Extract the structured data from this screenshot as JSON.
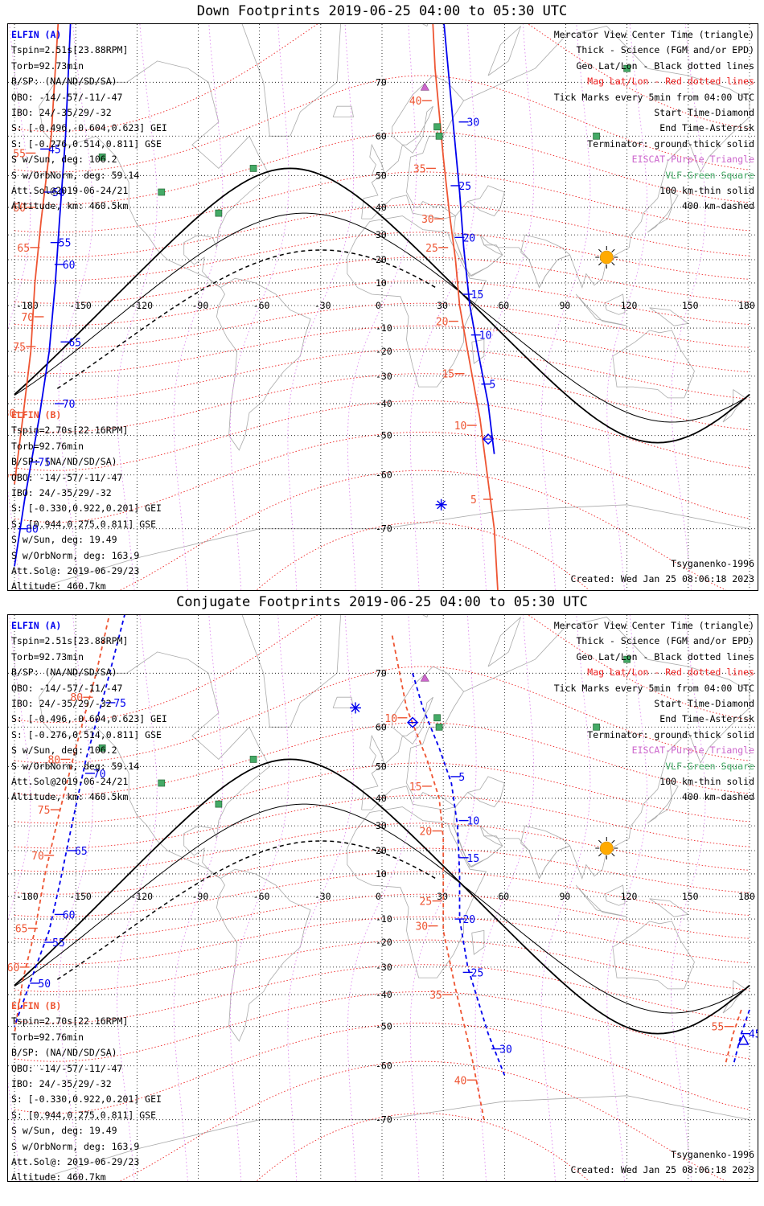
{
  "panels": [
    {
      "title": "Down Footprints 2019-06-25 04:00 to 05:30 UTC",
      "sat_a": {
        "name": "ELFIN (A)",
        "lines": [
          "Tspin=2.51s[23.88RPM]",
          "Torb=92.73min",
          "B/SP: (NA/ND/SD/SA)",
          "OBO: -14/-57/-11/-47",
          "IBO: 24/-35/29/-32",
          "S: [-0.496,-0.604,0.623] GEI",
          "S: [-0.276,0.514,0.811] GSE",
          "S w/Sun, deg: 106.2",
          "S w/OrbNorm, deg: 59.14",
          "Att.Sol@2019-06-24/21",
          "Altitude, km: 460.5km"
        ]
      },
      "sat_b": {
        "name": "ELFIN (B)",
        "lines": [
          "Tspin=2.70s[22.16RPM]",
          "Torb=92.76min",
          "B/SP: (NA/ND/SD/SA)",
          "OBO: -14/-57/-11/-47",
          "IBO: 24/-35/29/-32",
          "S: [-0.330,0.922,0.201] GEI",
          "S: [0.944,0.275,0.811] GSE",
          "S w/Sun, deg: 19.49",
          "S w/OrbNorm, deg: 163.9",
          "Att.Sol@: 2019-06-29/23",
          "Altitude: 460.7km"
        ]
      },
      "model": "Tsyganenko-1996",
      "created": "Created: Wed Jan 25 08:06:18 2023",
      "blue_ticks": [
        {
          "label": "30",
          "lon": 40,
          "lat": 63
        },
        {
          "label": "25",
          "lon": 36,
          "lat": 47
        },
        {
          "label": "20",
          "lon": 38,
          "lat": 29
        },
        {
          "label": "15",
          "lon": 42,
          "lat": 5
        },
        {
          "label": "10",
          "lon": 46,
          "lat": -13
        },
        {
          "label": "5",
          "lon": 51,
          "lat": -33
        },
        {
          "label": "45",
          "lon": -165,
          "lat": 57
        },
        {
          "label": "50",
          "lon": -163,
          "lat": 45
        },
        {
          "label": "55",
          "lon": -160,
          "lat": 27
        },
        {
          "label": "60",
          "lon": -158,
          "lat": 18
        },
        {
          "label": "65",
          "lon": -155,
          "lat": -16
        },
        {
          "label": "70",
          "lon": -158,
          "lat": -40
        },
        {
          "label": "75",
          "lon": -170,
          "lat": -57
        },
        {
          "label": "80",
          "lon": -176,
          "lat": -70
        }
      ],
      "red_ticks": [
        {
          "label": "40",
          "lon": 22,
          "lat": 67
        },
        {
          "label": "35",
          "lon": 24,
          "lat": 52
        },
        {
          "label": "30",
          "lon": 28,
          "lat": 36
        },
        {
          "label": "25",
          "lon": 30,
          "lat": 25
        },
        {
          "label": "20",
          "lon": 35,
          "lat": -7
        },
        {
          "label": "15",
          "lon": 38,
          "lat": -29
        },
        {
          "label": "10",
          "lon": 44,
          "lat": -47
        },
        {
          "label": "5",
          "lon": 52,
          "lat": -65
        },
        {
          "label": "50",
          "lon": -165,
          "lat": 80
        },
        {
          "label": "55",
          "lon": -172,
          "lat": 56
        },
        {
          "label": "60",
          "lon": -172,
          "lat": 40
        },
        {
          "label": "65",
          "lon": -170,
          "lat": 25
        },
        {
          "label": "70",
          "lon": -168,
          "lat": -5
        },
        {
          "label": "75",
          "lon": -172,
          "lat": -18
        },
        {
          "label": "80",
          "lon": -177,
          "lat": -43
        },
        {
          "label": "85",
          "lon": -180,
          "lat": -60
        }
      ],
      "blue_track_A": [
        [
          25,
          88
        ],
        [
          30,
          78
        ],
        [
          35,
          62
        ],
        [
          38,
          45
        ],
        [
          40,
          25
        ],
        [
          43,
          0
        ],
        [
          47,
          -20
        ],
        [
          52,
          -40
        ],
        [
          55,
          -55
        ]
      ],
      "red_track_A": [
        [
          22,
          88
        ],
        [
          26,
          72
        ],
        [
          30,
          55
        ],
        [
          33,
          38
        ],
        [
          36,
          20
        ],
        [
          38,
          0
        ],
        [
          42,
          -20
        ],
        [
          48,
          -45
        ],
        [
          55,
          -70
        ],
        [
          60,
          -85
        ]
      ],
      "blue_track_B": [
        [
          -150,
          88
        ],
        [
          -155,
          60
        ],
        [
          -158,
          35
        ],
        [
          -160,
          10
        ],
        [
          -163,
          -20
        ],
        [
          -168,
          -45
        ],
        [
          -175,
          -65
        ],
        [
          -180,
          -75
        ]
      ],
      "red_track_B": [
        [
          -155,
          88
        ],
        [
          -162,
          60
        ],
        [
          -167,
          35
        ],
        [
          -170,
          10
        ],
        [
          -172,
          -20
        ],
        [
          -176,
          -45
        ],
        [
          -180,
          -62
        ]
      ],
      "start_diamond": {
        "lon": 52,
        "lat": -51
      },
      "end_asterisk": {
        "lon": 29,
        "lat": -66
      },
      "sun": {
        "lon": 110,
        "lat": 21
      }
    },
    {
      "title": "Conjugate Footprints 2019-06-25 04:00 to 05:30 UTC",
      "sat_a": {
        "name": "ELFIN (A)",
        "lines": [
          "Tspin=2.51s[23.88RPM]",
          "Torb=92.73min",
          "B/SP: (NA/ND/SD/SA)",
          "OBO: -14/-57/-11/-47",
          "IBO: 24/-35/29/-32",
          "S: [-0.496,-0.604,0.623] GEI",
          "S: [-0.276,0.514,0.811] GSE",
          "S w/Sun, deg: 106.2",
          "S w/OrbNorm, deg: 59.14",
          "Att.Sol@2019-06-24/21",
          "Altitude, km: 460.5km"
        ]
      },
      "sat_b": {
        "name": "ELFIN (B)",
        "lines": [
          "Tspin=2.70s[22.16RPM]",
          "Torb=92.76min",
          "B/SP: (NA/ND/SD/SA)",
          "OBO: -14/-57/-11/-47",
          "IBO: 24/-35/29/-32",
          "S: [-0.330,0.922,0.201] GEI",
          "S: [0.944,0.275,0.811] GSE",
          "S w/Sun, deg: 19.49",
          "S w/OrbNorm, deg: 163.9",
          "Att.Sol@: 2019-06-29/23",
          "Altitude: 460.7km"
        ]
      },
      "model": "Tsyganenko-1996",
      "created": "Created: Wed Jan 25 08:06:18 2023",
      "blue_ticks": [
        {
          "label": "5",
          "lon": 36,
          "lat": 47
        },
        {
          "label": "10",
          "lon": 40,
          "lat": 32
        },
        {
          "label": "15",
          "lon": 40,
          "lat": 17
        },
        {
          "label": "20",
          "lon": 38,
          "lat": -10
        },
        {
          "label": "25",
          "lon": 42,
          "lat": -32
        },
        {
          "label": "30",
          "lon": 56,
          "lat": -56
        },
        {
          "label": "75",
          "lon": -133,
          "lat": 65
        },
        {
          "label": "70",
          "lon": -143,
          "lat": 48
        },
        {
          "label": "65",
          "lon": -152,
          "lat": 20
        },
        {
          "label": "60",
          "lon": -158,
          "lat": -8
        },
        {
          "label": "55",
          "lon": -163,
          "lat": -20
        },
        {
          "label": "50",
          "lon": -170,
          "lat": -36
        },
        {
          "label": "45",
          "lon": 178,
          "lat": -52
        }
      ],
      "red_ticks": [
        {
          "label": "10",
          "lon": 10,
          "lat": 62
        },
        {
          "label": "15",
          "lon": 22,
          "lat": 44
        },
        {
          "label": "20",
          "lon": 27,
          "lat": 28
        },
        {
          "label": "25",
          "lon": 27,
          "lat": -2
        },
        {
          "label": "30",
          "lon": 25,
          "lat": -13
        },
        {
          "label": "35",
          "lon": 32,
          "lat": -40
        },
        {
          "label": "40",
          "lon": 44,
          "lat": -63
        },
        {
          "label": "80",
          "lon": -144,
          "lat": 66
        },
        {
          "label": "80",
          "lon": -155,
          "lat": 52
        },
        {
          "label": "75",
          "lon": -160,
          "lat": 36
        },
        {
          "label": "70",
          "lon": -163,
          "lat": 18
        },
        {
          "label": "65",
          "lon": -171,
          "lat": -14
        },
        {
          "label": "60",
          "lon": -175,
          "lat": -30
        },
        {
          "label": "55",
          "lon": 170,
          "lat": -50
        }
      ],
      "blue_track_A": [
        [
          15,
          70
        ],
        [
          20,
          64
        ],
        [
          28,
          55
        ],
        [
          34,
          45
        ],
        [
          37,
          30
        ],
        [
          38,
          10
        ],
        [
          38,
          -10
        ],
        [
          42,
          -30
        ],
        [
          52,
          -52
        ],
        [
          60,
          -62
        ]
      ],
      "red_track_A": [
        [
          5,
          75
        ],
        [
          12,
          64
        ],
        [
          22,
          52
        ],
        [
          28,
          40
        ],
        [
          30,
          25
        ],
        [
          30,
          5
        ],
        [
          30,
          -15
        ],
        [
          36,
          -38
        ],
        [
          44,
          -58
        ],
        [
          50,
          -70
        ]
      ],
      "blue_track_B": [
        [
          -125,
          78
        ],
        [
          -135,
          68
        ],
        [
          -145,
          52
        ],
        [
          -152,
          30
        ],
        [
          -158,
          5
        ],
        [
          -163,
          -15
        ],
        [
          -172,
          -35
        ],
        [
          -180,
          -50
        ]
      ],
      "red_track_B": [
        [
          -130,
          80
        ],
        [
          -140,
          70
        ],
        [
          -150,
          55
        ],
        [
          -158,
          35
        ],
        [
          -165,
          10
        ],
        [
          -170,
          -15
        ],
        [
          -176,
          -35
        ],
        [
          -180,
          -52
        ]
      ],
      "red_track_B_east": [
        [
          176,
          -45
        ],
        [
          172,
          -52
        ],
        [
          168,
          -60
        ]
      ],
      "blue_track_B_east": [
        [
          180,
          -45
        ],
        [
          176,
          -52
        ],
        [
          172,
          -60
        ]
      ],
      "start_diamond": {
        "lon": 15,
        "lat": 61
      },
      "end_asterisk": {
        "lon": -13,
        "lat": 64
      },
      "start_diamond_b": {
        "lon": 177,
        "lat": -54
      },
      "sun": {
        "lon": 110,
        "lat": 21
      }
    }
  ],
  "legend": [
    {
      "text": "Mercator View Center Time (triangle)",
      "color": "#000000"
    },
    {
      "text": "Thick - Science (FGM and/or EPD)",
      "color": "#000000"
    },
    {
      "text": "Geo Lat/Lon - Black dotted lines",
      "color": "#000000"
    },
    {
      "text": "Mag Lat/Lon - Red dotted lines",
      "color": "#ee2222"
    },
    {
      "text": "Tick Marks every 5min from 04:00 UTC",
      "color": "#000000"
    },
    {
      "text": "Start Time-Diamond",
      "color": "#000000"
    },
    {
      "text": "End Time-Asterisk",
      "color": "#000000"
    },
    {
      "text": "Terminator: ground-thick solid",
      "color": "#000000"
    },
    {
      "text": "EISCAT-Purple Triangle",
      "color": "#cc66cc"
    },
    {
      "text": "VLF-Green Square",
      "color": "#44aa66"
    },
    {
      "text": "100 km-thin solid",
      "color": "#000000"
    },
    {
      "text": "400 km-dashed",
      "color": "#000000"
    }
  ],
  "lon_labels": [
    "-180",
    "-150",
    "-120",
    "-90",
    "-60",
    "-30",
    "0",
    "30",
    "60",
    "90",
    "120",
    "150",
    "180"
  ],
  "lat_labels": [
    "70",
    "60",
    "50",
    "40",
    "30",
    "20",
    "10",
    "-10",
    "-20",
    "-30",
    "-40",
    "-50",
    "-60",
    "-70"
  ],
  "colors": {
    "sat_a": "#0000ee",
    "sat_b": "#ee5533",
    "grid_geo": "#000000",
    "grid_mag": "#ee2222",
    "coast": "#aaaaaa",
    "eiscat": "#cc66cc",
    "vlf": "#44aa66",
    "sun": "#ffaa00"
  }
}
